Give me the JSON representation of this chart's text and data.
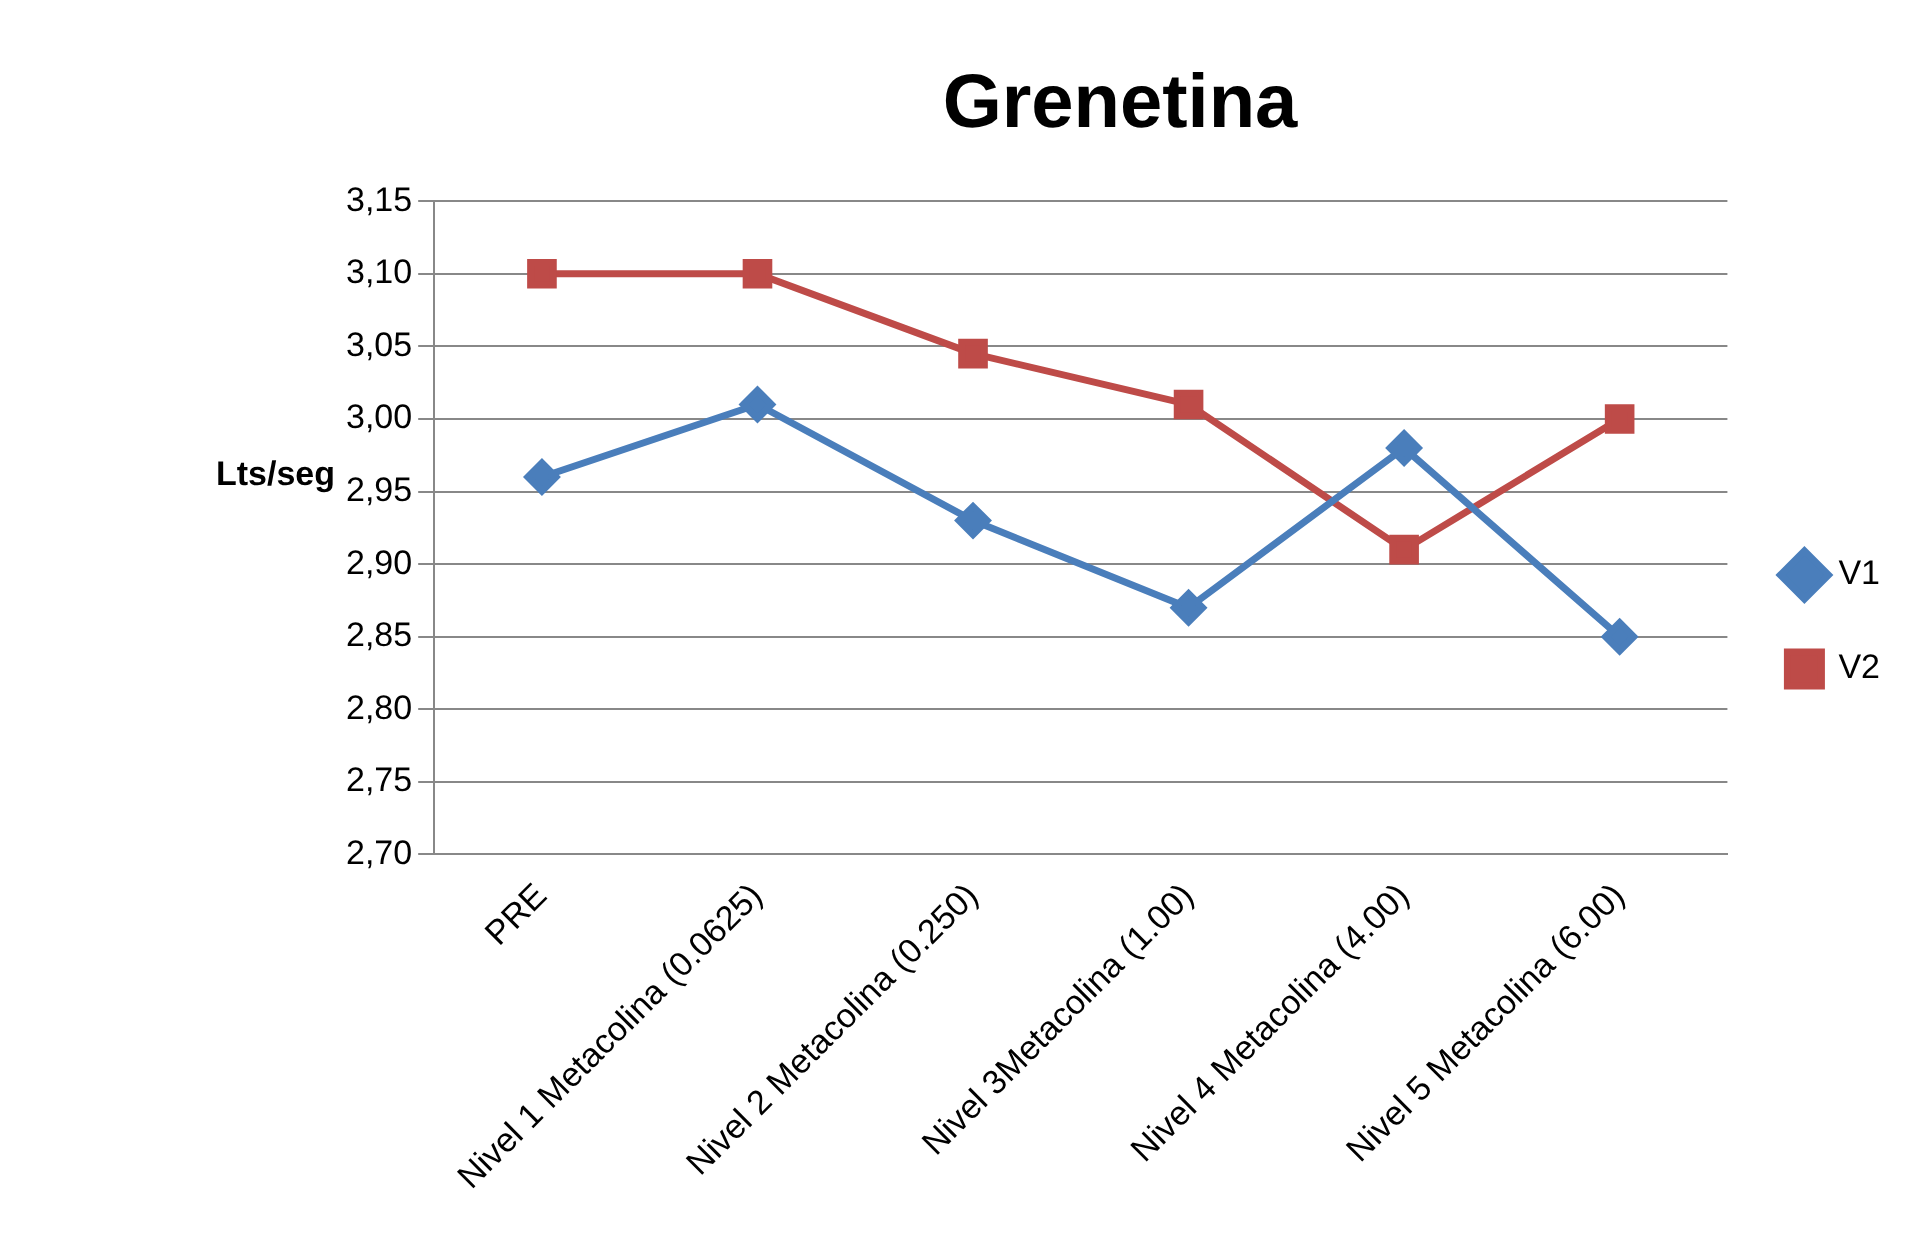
{
  "chart_data": {
    "type": "line",
    "title": "Grenetina",
    "ylabel": "Lts/seg",
    "categories": [
      "PRE",
      "Nivel 1 Metacolina (0.0625)",
      "Nivel 2 Metacolina (0.250)",
      "Nivel 3Metacolina (1.00)",
      "Nivel 4 Metacolina (4.00)",
      "Nivel 5 Metacolina (6.00)"
    ],
    "series": [
      {
        "name": "V1",
        "color": "#4a7ebb",
        "marker": "diamond",
        "values": [
          2.96,
          3.01,
          2.93,
          2.87,
          2.98,
          2.85
        ]
      },
      {
        "name": "V2",
        "color": "#be4b48",
        "marker": "square",
        "values": [
          3.1,
          3.1,
          3.045,
          3.01,
          2.91,
          3.0
        ]
      }
    ],
    "ylim": [
      2.7,
      3.15
    ],
    "yticks": [
      {
        "value": 2.7,
        "label": "2,70"
      },
      {
        "value": 2.75,
        "label": "2,75"
      },
      {
        "value": 2.8,
        "label": "2,80"
      },
      {
        "value": 2.85,
        "label": "2,85"
      },
      {
        "value": 2.9,
        "label": "2,90"
      },
      {
        "value": 2.95,
        "label": "2,95"
      },
      {
        "value": 3.0,
        "label": "3,00"
      },
      {
        "value": 3.05,
        "label": "3,05"
      },
      {
        "value": 3.1,
        "label": "3,10"
      },
      {
        "value": 3.15,
        "label": "3,15"
      }
    ],
    "grid": "y",
    "legend": "right",
    "line_style": "solid"
  }
}
